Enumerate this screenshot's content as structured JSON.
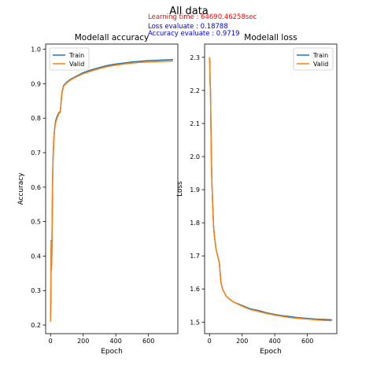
{
  "suptitle": "All data",
  "learning_time": "Learning time : 64690.46258sec",
  "loss_evaluate": "Loss evaluate : 0.18788",
  "accuracy_evaluate": "Accuracy evaluate : 0.9719",
  "colors": {
    "train": "#1f77b4",
    "valid": "#ff7f0e",
    "learning_time": "#ff0000",
    "evaluate": "#0000cc"
  },
  "chart_data": [
    {
      "type": "line",
      "title": "Modelall accuracy",
      "xlabel": "Epoch",
      "ylabel": "Accuracy",
      "xlim": [
        -30,
        780
      ],
      "ylim": [
        0.175,
        1.015
      ],
      "xticks": [
        0,
        200,
        400,
        600
      ],
      "yticks": [
        0.2,
        0.3,
        0.4,
        0.5,
        0.6,
        0.7,
        0.8,
        0.9,
        1.0
      ],
      "legend_position": "top-left",
      "series": [
        {
          "name": "Train",
          "x": [
            0,
            2,
            4,
            6,
            8,
            10,
            12,
            15,
            20,
            25,
            30,
            40,
            50,
            60,
            65,
            70,
            75,
            80,
            90,
            100,
            120,
            150,
            200,
            250,
            300,
            350,
            400,
            450,
            500,
            550,
            600,
            650,
            700,
            750
          ],
          "y": [
            0.21,
            0.3,
            0.445,
            0.37,
            0.4,
            0.5,
            0.6,
            0.68,
            0.74,
            0.77,
            0.79,
            0.805,
            0.815,
            0.82,
            0.85,
            0.875,
            0.885,
            0.895,
            0.9,
            0.905,
            0.912,
            0.92,
            0.932,
            0.94,
            0.947,
            0.953,
            0.957,
            0.96,
            0.963,
            0.965,
            0.967,
            0.968,
            0.969,
            0.97
          ]
        },
        {
          "name": "Valid",
          "x": [
            0,
            2,
            4,
            6,
            8,
            10,
            12,
            15,
            20,
            25,
            30,
            40,
            50,
            60,
            65,
            70,
            75,
            80,
            90,
            100,
            120,
            150,
            200,
            250,
            300,
            350,
            400,
            450,
            500,
            550,
            600,
            650,
            700,
            750
          ],
          "y": [
            0.21,
            0.31,
            0.44,
            0.36,
            0.41,
            0.5,
            0.59,
            0.67,
            0.735,
            0.765,
            0.785,
            0.8,
            0.812,
            0.818,
            0.848,
            0.873,
            0.883,
            0.893,
            0.898,
            0.903,
            0.91,
            0.918,
            0.929,
            0.937,
            0.944,
            0.95,
            0.954,
            0.957,
            0.96,
            0.962,
            0.963,
            0.964,
            0.965,
            0.966
          ]
        }
      ]
    },
    {
      "type": "line",
      "title": "Modelall loss",
      "xlabel": "Epoch",
      "ylabel": "Loss",
      "xlim": [
        -30,
        780
      ],
      "ylim": [
        1.465,
        2.34
      ],
      "xticks": [
        0,
        200,
        400,
        600
      ],
      "yticks": [
        1.5,
        1.6,
        1.7,
        1.8,
        1.9,
        2.0,
        2.1,
        2.2,
        2.3
      ],
      "legend_position": "top-right",
      "series": [
        {
          "name": "Train",
          "x": [
            0,
            2,
            4,
            6,
            8,
            10,
            12,
            15,
            20,
            25,
            30,
            40,
            50,
            60,
            65,
            70,
            75,
            80,
            90,
            100,
            120,
            150,
            200,
            250,
            300,
            350,
            400,
            450,
            500,
            550,
            600,
            650,
            700,
            750
          ],
          "y": [
            2.3,
            2.28,
            2.22,
            2.2,
            2.12,
            2.05,
            1.98,
            1.92,
            1.85,
            1.79,
            1.76,
            1.72,
            1.7,
            1.68,
            1.65,
            1.62,
            1.61,
            1.6,
            1.59,
            1.58,
            1.57,
            1.56,
            1.55,
            1.54,
            1.535,
            1.528,
            1.523,
            1.519,
            1.516,
            1.513,
            1.511,
            1.509,
            1.508,
            1.507
          ]
        },
        {
          "name": "Valid",
          "x": [
            0,
            2,
            4,
            6,
            8,
            10,
            12,
            15,
            20,
            25,
            30,
            40,
            50,
            60,
            65,
            70,
            75,
            80,
            90,
            100,
            120,
            150,
            200,
            250,
            300,
            350,
            400,
            450,
            500,
            550,
            600,
            650,
            700,
            750
          ],
          "y": [
            2.3,
            2.28,
            2.22,
            2.2,
            2.12,
            2.05,
            1.98,
            1.92,
            1.85,
            1.79,
            1.76,
            1.72,
            1.7,
            1.68,
            1.65,
            1.62,
            1.61,
            1.6,
            1.59,
            1.58,
            1.57,
            1.56,
            1.548,
            1.538,
            1.532,
            1.526,
            1.521,
            1.517,
            1.513,
            1.511,
            1.509,
            1.507,
            1.505,
            1.504
          ]
        }
      ]
    }
  ]
}
